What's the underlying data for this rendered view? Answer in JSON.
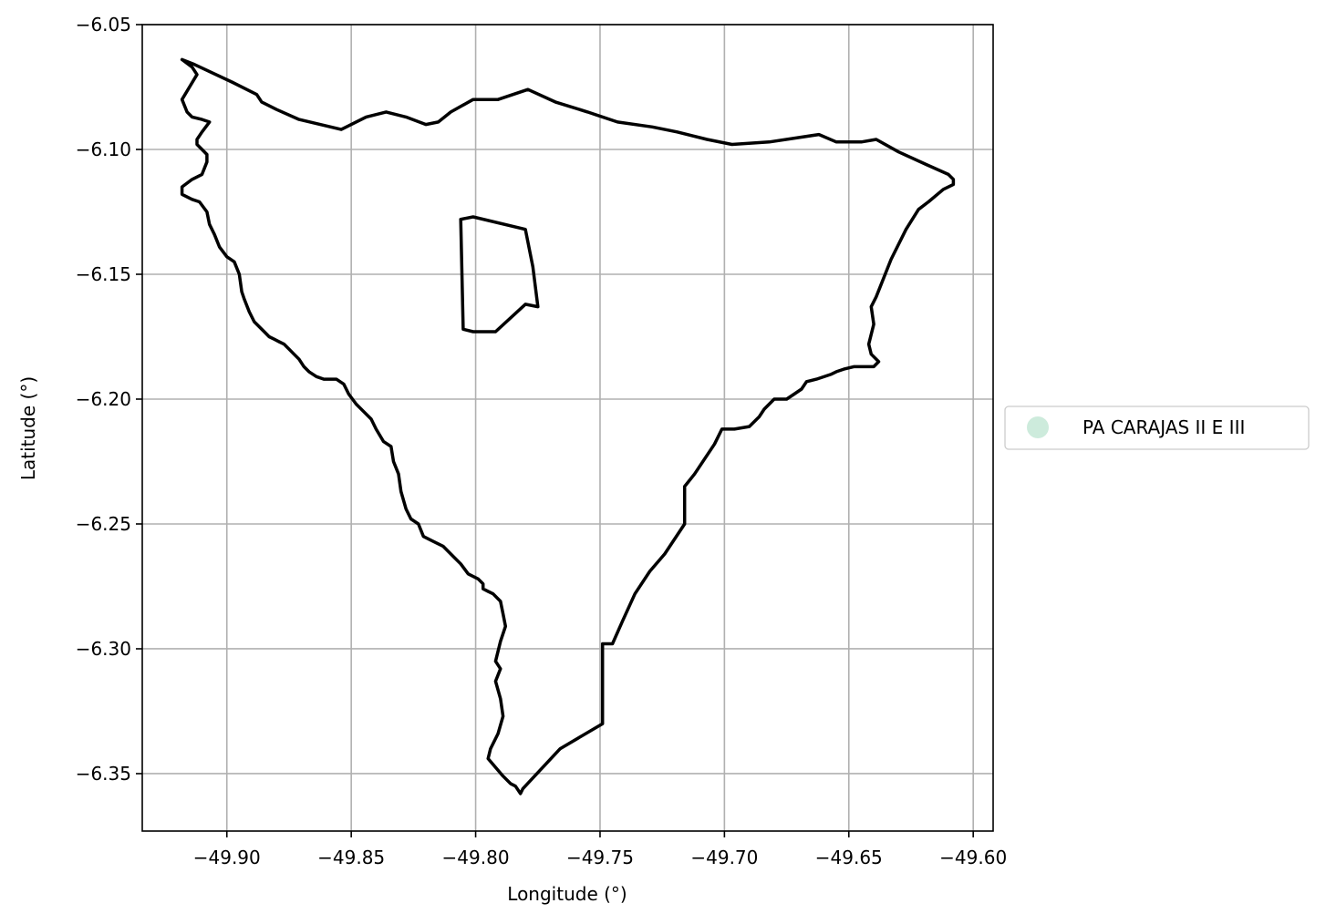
{
  "chart_data": {
    "type": "map",
    "xlabel": "Longitude (°)",
    "ylabel": "Latitude (°)",
    "xlim": [
      -49.934,
      -49.592
    ],
    "ylim": [
      -6.373,
      -6.05
    ],
    "grid": true,
    "x_ticks": [
      -49.9,
      -49.85,
      -49.8,
      -49.75,
      -49.7,
      -49.65,
      -49.6
    ],
    "x_tick_labels": [
      "−49.90",
      "−49.85",
      "−49.80",
      "−49.75",
      "−49.70",
      "−49.65",
      "−49.60"
    ],
    "y_ticks": [
      -6.05,
      -6.1,
      -6.15,
      -6.2,
      -6.25,
      -6.3,
      -6.35
    ],
    "y_tick_labels": [
      "−6.05",
      "−6.10",
      "−6.15",
      "−6.20",
      "−6.25",
      "−6.30",
      "−6.35"
    ],
    "legend": {
      "placement": "center-right-outside",
      "entries": [
        {
          "label": "PA CARAJAS II E III",
          "color": "#cdebdc"
        }
      ]
    },
    "boundary_color": "#000000",
    "boundaries": {
      "outer": [
        [
          -49.918,
          -6.064
        ],
        [
          -49.913,
          -6.066
        ],
        [
          -49.898,
          -6.073
        ],
        [
          -49.888,
          -6.078
        ],
        [
          -49.886,
          -6.081
        ],
        [
          -49.88,
          -6.084
        ],
        [
          -49.871,
          -6.088
        ],
        [
          -49.854,
          -6.092
        ],
        [
          -49.85,
          -6.09
        ],
        [
          -49.844,
          -6.087
        ],
        [
          -49.836,
          -6.085
        ],
        [
          -49.828,
          -6.087
        ],
        [
          -49.82,
          -6.09
        ],
        [
          -49.815,
          -6.089
        ],
        [
          -49.81,
          -6.085
        ],
        [
          -49.801,
          -6.08
        ],
        [
          -49.791,
          -6.08
        ],
        [
          -49.779,
          -6.076
        ],
        [
          -49.768,
          -6.081
        ],
        [
          -49.755,
          -6.085
        ],
        [
          -49.743,
          -6.089
        ],
        [
          -49.729,
          -6.091
        ],
        [
          -49.719,
          -6.093
        ],
        [
          -49.707,
          -6.096
        ],
        [
          -49.697,
          -6.098
        ],
        [
          -49.682,
          -6.097
        ],
        [
          -49.662,
          -6.094
        ],
        [
          -49.655,
          -6.097
        ],
        [
          -49.645,
          -6.097
        ],
        [
          -49.639,
          -6.096
        ],
        [
          -49.63,
          -6.101
        ],
        [
          -49.619,
          -6.106
        ],
        [
          -49.61,
          -6.11
        ],
        [
          -49.608,
          -6.112
        ],
        [
          -49.608,
          -6.114
        ],
        [
          -49.612,
          -6.116
        ],
        [
          -49.618,
          -6.121
        ],
        [
          -49.622,
          -6.124
        ],
        [
          -49.627,
          -6.132
        ],
        [
          -49.633,
          -6.144
        ],
        [
          -49.639,
          -6.159
        ],
        [
          -49.641,
          -6.163
        ],
        [
          -49.64,
          -6.17
        ],
        [
          -49.642,
          -6.178
        ],
        [
          -49.641,
          -6.182
        ],
        [
          -49.638,
          -6.185
        ],
        [
          -49.64,
          -6.187
        ],
        [
          -49.648,
          -6.187
        ],
        [
          -49.652,
          -6.188
        ],
        [
          -49.655,
          -6.189
        ],
        [
          -49.657,
          -6.19
        ],
        [
          -49.663,
          -6.192
        ],
        [
          -49.667,
          -6.193
        ],
        [
          -49.669,
          -6.196
        ],
        [
          -49.672,
          -6.198
        ],
        [
          -49.675,
          -6.2
        ],
        [
          -49.68,
          -6.2
        ],
        [
          -49.684,
          -6.204
        ],
        [
          -49.686,
          -6.207
        ],
        [
          -49.69,
          -6.211
        ],
        [
          -49.696,
          -6.212
        ],
        [
          -49.701,
          -6.212
        ],
        [
          -49.704,
          -6.218
        ],
        [
          -49.712,
          -6.23
        ],
        [
          -49.716,
          -6.235
        ],
        [
          -49.716,
          -6.25
        ],
        [
          -49.724,
          -6.262
        ],
        [
          -49.73,
          -6.269
        ],
        [
          -49.736,
          -6.278
        ],
        [
          -49.741,
          -6.289
        ],
        [
          -49.745,
          -6.298
        ],
        [
          -49.749,
          -6.298
        ],
        [
          -49.749,
          -6.33
        ],
        [
          -49.766,
          -6.34
        ],
        [
          -49.781,
          -6.356
        ],
        [
          -49.782,
          -6.358
        ],
        [
          -49.784,
          -6.355
        ],
        [
          -49.786,
          -6.354
        ],
        [
          -49.789,
          -6.351
        ],
        [
          -49.795,
          -6.344
        ],
        [
          -49.794,
          -6.34
        ],
        [
          -49.791,
          -6.334
        ],
        [
          -49.789,
          -6.327
        ],
        [
          -49.79,
          -6.32
        ],
        [
          -49.792,
          -6.313
        ],
        [
          -49.79,
          -6.308
        ],
        [
          -49.792,
          -6.305
        ],
        [
          -49.79,
          -6.297
        ],
        [
          -49.788,
          -6.291
        ],
        [
          -49.789,
          -6.286
        ],
        [
          -49.79,
          -6.281
        ],
        [
          -49.793,
          -6.278
        ],
        [
          -49.795,
          -6.277
        ],
        [
          -49.797,
          -6.276
        ],
        [
          -49.797,
          -6.274
        ],
        [
          -49.799,
          -6.272
        ],
        [
          -49.803,
          -6.27
        ],
        [
          -49.806,
          -6.266
        ],
        [
          -49.809,
          -6.263
        ],
        [
          -49.813,
          -6.259
        ],
        [
          -49.817,
          -6.257
        ],
        [
          -49.821,
          -6.255
        ],
        [
          -49.823,
          -6.25
        ],
        [
          -49.826,
          -6.248
        ],
        [
          -49.828,
          -6.244
        ],
        [
          -49.83,
          -6.237
        ],
        [
          -49.831,
          -6.23
        ],
        [
          -49.833,
          -6.225
        ],
        [
          -49.834,
          -6.219
        ],
        [
          -49.837,
          -6.217
        ],
        [
          -49.84,
          -6.212
        ],
        [
          -49.842,
          -6.208
        ],
        [
          -49.845,
          -6.205
        ],
        [
          -49.848,
          -6.202
        ],
        [
          -49.851,
          -6.198
        ],
        [
          -49.853,
          -6.194
        ],
        [
          -49.856,
          -6.192
        ],
        [
          -49.858,
          -6.192
        ],
        [
          -49.861,
          -6.192
        ],
        [
          -49.864,
          -6.191
        ],
        [
          -49.867,
          -6.189
        ],
        [
          -49.869,
          -6.187
        ],
        [
          -49.871,
          -6.184
        ],
        [
          -49.873,
          -6.182
        ],
        [
          -49.875,
          -6.18
        ],
        [
          -49.877,
          -6.178
        ],
        [
          -49.879,
          -6.177
        ],
        [
          -49.881,
          -6.176
        ],
        [
          -49.883,
          -6.175
        ],
        [
          -49.885,
          -6.173
        ],
        [
          -49.887,
          -6.171
        ],
        [
          -49.889,
          -6.169
        ],
        [
          -49.891,
          -6.165
        ],
        [
          -49.893,
          -6.16
        ],
        [
          -49.894,
          -6.157
        ],
        [
          -49.895,
          -6.15
        ],
        [
          -49.897,
          -6.145
        ],
        [
          -49.9,
          -6.143
        ],
        [
          -49.903,
          -6.139
        ],
        [
          -49.905,
          -6.134
        ],
        [
          -49.907,
          -6.13
        ],
        [
          -49.908,
          -6.125
        ],
        [
          -49.911,
          -6.121
        ],
        [
          -49.914,
          -6.12
        ],
        [
          -49.918,
          -6.118
        ],
        [
          -49.918,
          -6.115
        ],
        [
          -49.914,
          -6.112
        ],
        [
          -49.91,
          -6.11
        ],
        [
          -49.908,
          -6.105
        ],
        [
          -49.908,
          -6.102
        ],
        [
          -49.91,
          -6.1
        ],
        [
          -49.912,
          -6.098
        ],
        [
          -49.912,
          -6.096
        ],
        [
          -49.91,
          -6.093
        ],
        [
          -49.907,
          -6.089
        ],
        [
          -49.91,
          -6.088
        ],
        [
          -49.914,
          -6.087
        ],
        [
          -49.916,
          -6.085
        ],
        [
          -49.918,
          -6.08
        ],
        [
          -49.915,
          -6.075
        ],
        [
          -49.912,
          -6.07
        ],
        [
          -49.914,
          -6.067
        ],
        [
          -49.918,
          -6.064
        ]
      ],
      "inner": [
        [
          -49.806,
          -6.128
        ],
        [
          -49.801,
          -6.127
        ],
        [
          -49.78,
          -6.132
        ],
        [
          -49.777,
          -6.147
        ],
        [
          -49.775,
          -6.163
        ],
        [
          -49.78,
          -6.162
        ],
        [
          -49.792,
          -6.173
        ],
        [
          -49.801,
          -6.173
        ],
        [
          -49.805,
          -6.172
        ],
        [
          -49.806,
          -6.128
        ]
      ]
    }
  }
}
